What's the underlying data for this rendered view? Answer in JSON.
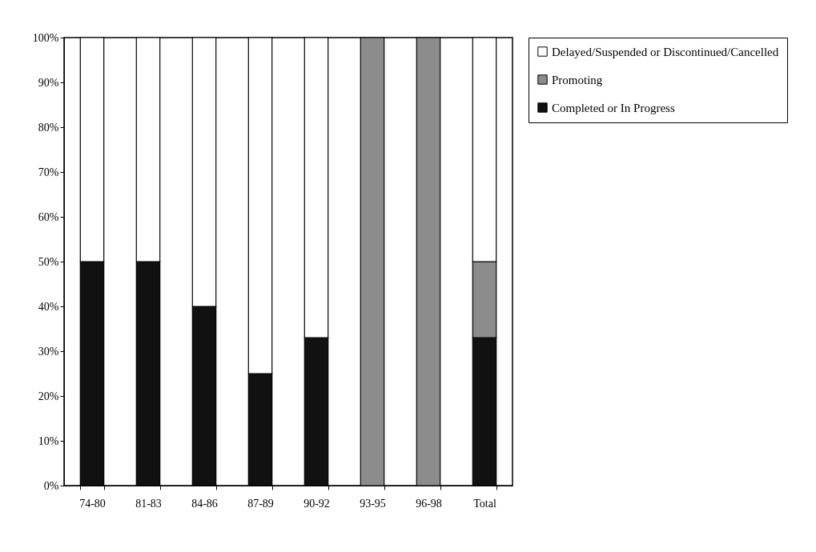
{
  "chart_data": {
    "type": "bar",
    "stacked": true,
    "categories": [
      "74-80",
      "81-83",
      "84-86",
      "87-89",
      "90-92",
      "93-95",
      "96-98",
      "Total"
    ],
    "series": [
      {
        "name": "Completed or In Progress",
        "color": "#111111",
        "values": [
          50,
          50,
          40,
          25,
          33,
          0,
          0,
          33
        ]
      },
      {
        "name": "Promoting",
        "color": "#8c8c8c",
        "values": [
          0,
          0,
          0,
          0,
          0,
          100,
          100,
          17
        ]
      },
      {
        "name": "Delayed/Suspended or Discontinued/Cancelled",
        "color": "#ffffff",
        "values": [
          50,
          50,
          60,
          75,
          67,
          0,
          0,
          50
        ]
      }
    ],
    "ylim": [
      0,
      100
    ],
    "yticks": [
      {
        "value": 0,
        "label": "0%"
      },
      {
        "value": 10,
        "label": "10%"
      },
      {
        "value": 20,
        "label": "20%"
      },
      {
        "value": 30,
        "label": "30%"
      },
      {
        "value": 40,
        "label": "40%"
      },
      {
        "value": 50,
        "label": "50%"
      },
      {
        "value": 60,
        "label": "60%"
      },
      {
        "value": 70,
        "label": "70%"
      },
      {
        "value": 80,
        "label": "80%"
      },
      {
        "value": 90,
        "label": "90%"
      },
      {
        "value": 100,
        "label": "100%"
      }
    ],
    "grid": false,
    "legend": "right"
  }
}
